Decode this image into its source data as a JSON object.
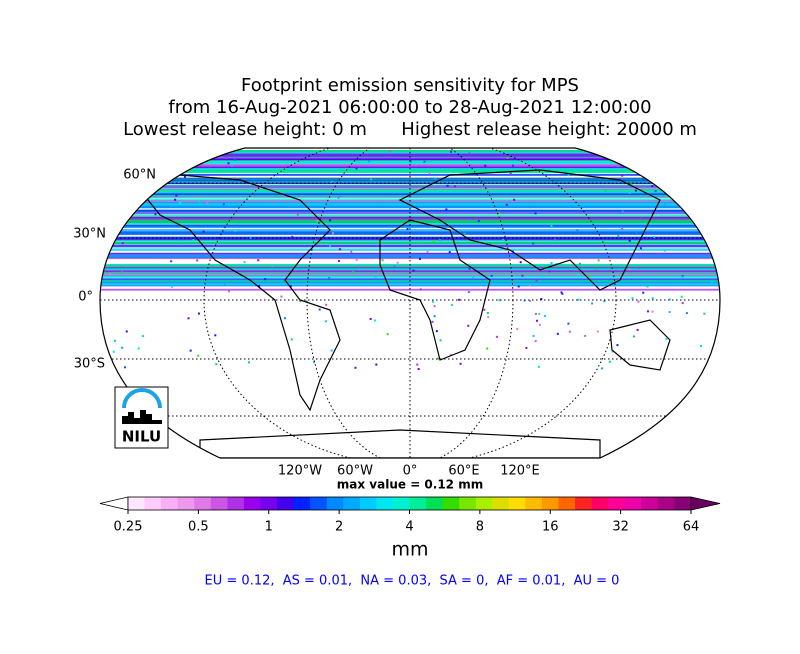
{
  "title_lines": [
    "Footprint emission sensitivity for MPS",
    "from 16-Aug-2021 06:00:00 to 28-Aug-2021 12:00:00",
    "Lowest release height: 0 m      Highest release height: 20000 m"
  ],
  "map": {
    "lat_labels": [
      "60°N",
      "30°N",
      "0°",
      "30°S"
    ],
    "lon_labels": [
      "120°W",
      "60°W",
      "0°",
      "60°E",
      "120°E"
    ],
    "logo": "NILU"
  },
  "max_value": "max value = 0.12 mm",
  "colorbar": {
    "ticks": [
      0.25,
      0.5,
      1,
      2,
      4,
      8,
      16,
      32,
      64
    ],
    "lim": [
      0.25,
      64
    ],
    "log": true,
    "unit": "mm",
    "colors": [
      "#ffe6ff",
      "#ffccff",
      "#f7b0f7",
      "#ee99ee",
      "#e07ae8",
      "#cc55e6",
      "#b030e6",
      "#9900ee",
      "#7700ee",
      "#4400ee",
      "#0022ff",
      "#0055ff",
      "#0088ff",
      "#00aaff",
      "#00ccff",
      "#00e6f0",
      "#00f0d0",
      "#00ee99",
      "#00e055",
      "#33dd00",
      "#77e600",
      "#aaee00",
      "#dddd00",
      "#ffdd00",
      "#ffbb00",
      "#ff9900",
      "#ff6600",
      "#ff2222",
      "#ff0066",
      "#ff0099",
      "#ee00aa",
      "#cc0099",
      "#aa0088",
      "#880077"
    ],
    "under_color": "#ffffff",
    "over_color": "#6a0060"
  },
  "stats": "EU = 0.12,  AS = 0.01,  NA = 0.03,  SA = 0,  AF = 0.01,  AU = 0"
}
